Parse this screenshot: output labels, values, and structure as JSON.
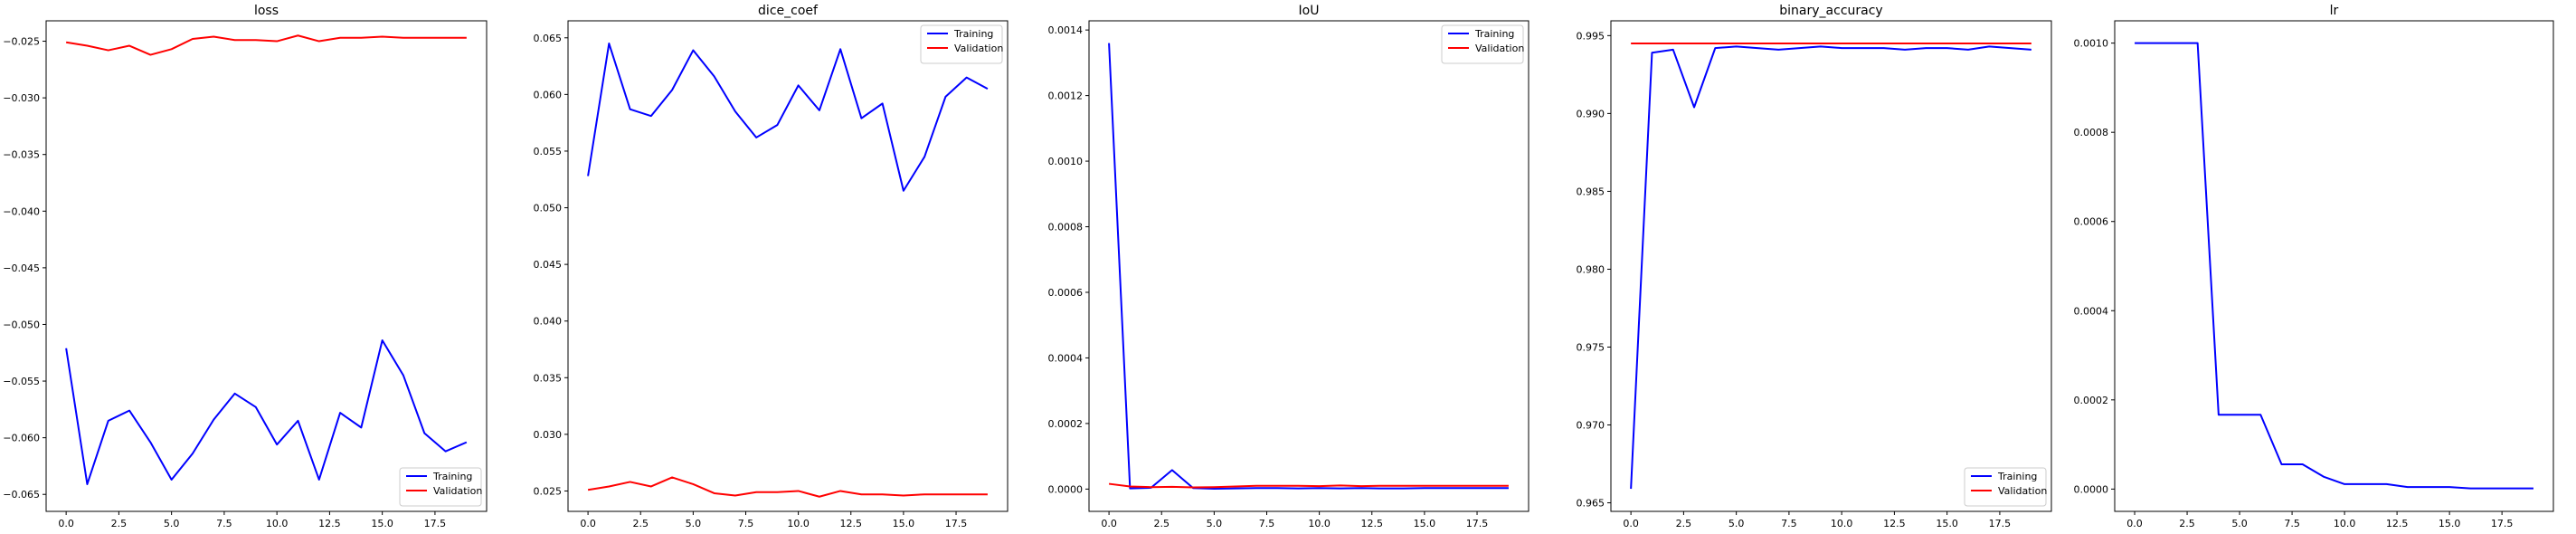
{
  "chart_data": [
    {
      "type": "line",
      "title": "loss",
      "xlabel": "",
      "ylabel": "",
      "xlim": [
        -0.95,
        19.95
      ],
      "ylim": [
        -0.0665,
        -0.0232
      ],
      "xticks": [
        0.0,
        2.5,
        5.0,
        7.5,
        10.0,
        12.5,
        15.0,
        17.5
      ],
      "xtick_labels": [
        "0.0",
        "2.5",
        "5.0",
        "7.5",
        "10.0",
        "12.5",
        "15.0",
        "17.5"
      ],
      "yticks": [
        -0.065,
        -0.06,
        -0.055,
        -0.05,
        -0.045,
        -0.04,
        -0.035,
        -0.03,
        -0.025
      ],
      "ytick_labels": [
        "−0.065",
        "−0.060",
        "−0.055",
        "−0.050",
        "−0.045",
        "−0.040",
        "−0.035",
        "−0.030",
        "−0.025"
      ],
      "legend": "lower-right",
      "x": [
        0,
        1,
        2,
        3,
        4,
        5,
        6,
        7,
        8,
        9,
        10,
        11,
        12,
        13,
        14,
        15,
        16,
        17,
        18,
        19
      ],
      "series": [
        {
          "name": "Training",
          "color": "#0000ff",
          "values": [
            -0.0521,
            -0.0641,
            -0.0585,
            -0.0576,
            -0.0604,
            -0.0637,
            -0.0614,
            -0.0584,
            -0.0561,
            -0.0573,
            -0.0606,
            -0.0585,
            -0.0637,
            -0.0578,
            -0.0591,
            -0.0514,
            -0.0545,
            -0.0596,
            -0.0612,
            -0.0604
          ]
        },
        {
          "name": "Validation",
          "color": "#ff0000",
          "values": [
            -0.0251,
            -0.0254,
            -0.0258,
            -0.0254,
            -0.0262,
            -0.0257,
            -0.0248,
            -0.0246,
            -0.0249,
            -0.0249,
            -0.025,
            -0.0245,
            -0.025,
            -0.0247,
            -0.0247,
            -0.0246,
            -0.0247,
            -0.0247,
            -0.0247,
            -0.0247
          ]
        }
      ]
    },
    {
      "type": "line",
      "title": "dice_coef",
      "xlabel": "",
      "ylabel": "",
      "xlim": [
        -0.95,
        19.95
      ],
      "ylim": [
        0.0232,
        0.0665
      ],
      "xticks": [
        0.0,
        2.5,
        5.0,
        7.5,
        10.0,
        12.5,
        15.0,
        17.5
      ],
      "xtick_labels": [
        "0.0",
        "2.5",
        "5.0",
        "7.5",
        "10.0",
        "12.5",
        "15.0",
        "17.5"
      ],
      "yticks": [
        0.025,
        0.03,
        0.035,
        0.04,
        0.045,
        0.05,
        0.055,
        0.06,
        0.065
      ],
      "ytick_labels": [
        "0.025",
        "0.030",
        "0.035",
        "0.040",
        "0.045",
        "0.050",
        "0.055",
        "0.060",
        "0.065"
      ],
      "legend": "upper-right",
      "x": [
        0,
        1,
        2,
        3,
        4,
        5,
        6,
        7,
        8,
        9,
        10,
        11,
        12,
        13,
        14,
        15,
        16,
        17,
        18,
        19
      ],
      "series": [
        {
          "name": "Training",
          "color": "#0000ff",
          "values": [
            0.0528,
            0.0645,
            0.0587,
            0.0581,
            0.0604,
            0.0639,
            0.0616,
            0.0585,
            0.0562,
            0.0573,
            0.0608,
            0.0586,
            0.064,
            0.0579,
            0.0592,
            0.0515,
            0.0545,
            0.0598,
            0.0615,
            0.0605
          ]
        },
        {
          "name": "Validation",
          "color": "#ff0000",
          "values": [
            0.0251,
            0.0254,
            0.0258,
            0.0254,
            0.0262,
            0.0256,
            0.0248,
            0.0246,
            0.0249,
            0.0249,
            0.025,
            0.0245,
            0.025,
            0.0247,
            0.0247,
            0.0246,
            0.0247,
            0.0247,
            0.0247,
            0.0247
          ]
        }
      ]
    },
    {
      "type": "line",
      "title": "IoU",
      "xlabel": "",
      "ylabel": "",
      "xlim": [
        -0.95,
        19.95
      ],
      "ylim": [
        -6.8e-05,
        0.001428
      ],
      "xticks": [
        0.0,
        2.5,
        5.0,
        7.5,
        10.0,
        12.5,
        15.0,
        17.5
      ],
      "xtick_labels": [
        "0.0",
        "2.5",
        "5.0",
        "7.5",
        "10.0",
        "12.5",
        "15.0",
        "17.5"
      ],
      "yticks": [
        0.0,
        0.0002,
        0.0004,
        0.0006,
        0.0008,
        0.001,
        0.0012,
        0.0014
      ],
      "ytick_labels": [
        "0.0000",
        "0.0002",
        "0.0004",
        "0.0006",
        "0.0008",
        "0.0010",
        "0.0012",
        "0.0014"
      ],
      "legend": "upper-right",
      "x": [
        0,
        1,
        2,
        3,
        4,
        5,
        6,
        7,
        8,
        9,
        10,
        11,
        12,
        13,
        14,
        15,
        16,
        17,
        18,
        19
      ],
      "series": [
        {
          "name": "Training",
          "color": "#0000ff",
          "values": [
            0.00136,
            2e-06,
            4e-06,
            5.8e-05,
            3e-06,
            1e-06,
            2e-06,
            3e-06,
            3e-06,
            2e-06,
            3e-06,
            2e-06,
            3e-06,
            2e-06,
            2e-06,
            3e-06,
            3e-06,
            3e-06,
            3e-06,
            3e-06
          ]
        },
        {
          "name": "Validation",
          "color": "#ff0000",
          "values": [
            1.6e-05,
            8e-06,
            6e-06,
            7e-06,
            5e-06,
            6e-06,
            8e-06,
            1e-05,
            1e-05,
            1e-05,
            9e-06,
            1.1e-05,
            9e-06,
            1e-05,
            1e-05,
            1e-05,
            1e-05,
            1e-05,
            1e-05,
            1e-05
          ]
        }
      ]
    },
    {
      "type": "line",
      "title": "binary_accuracy",
      "xlabel": "",
      "ylabel": "",
      "xlim": [
        -0.95,
        19.95
      ],
      "ylim": [
        0.96445,
        0.99595
      ],
      "xticks": [
        0.0,
        2.5,
        5.0,
        7.5,
        10.0,
        12.5,
        15.0,
        17.5
      ],
      "xtick_labels": [
        "0.0",
        "2.5",
        "5.0",
        "7.5",
        "10.0",
        "12.5",
        "15.0",
        "17.5"
      ],
      "yticks": [
        0.965,
        0.97,
        0.975,
        0.98,
        0.985,
        0.99,
        0.995
      ],
      "ytick_labels": [
        "0.965",
        "0.970",
        "0.975",
        "0.980",
        "0.985",
        "0.990",
        "0.995"
      ],
      "legend": "lower-right",
      "x": [
        0,
        1,
        2,
        3,
        4,
        5,
        6,
        7,
        8,
        9,
        10,
        11,
        12,
        13,
        14,
        15,
        16,
        17,
        18,
        19
      ],
      "series": [
        {
          "name": "Training",
          "color": "#0000ff",
          "values": [
            0.9659,
            0.9939,
            0.9941,
            0.9904,
            0.9942,
            0.9943,
            0.9942,
            0.9941,
            0.9942,
            0.9943,
            0.9942,
            0.9942,
            0.9942,
            0.9941,
            0.9942,
            0.9942,
            0.9941,
            0.9943,
            0.9942,
            0.9941
          ]
        },
        {
          "name": "Validation",
          "color": "#ff0000",
          "values": [
            0.9945,
            0.9945,
            0.9945,
            0.9945,
            0.9945,
            0.9945,
            0.9945,
            0.9945,
            0.9945,
            0.9945,
            0.9945,
            0.9945,
            0.9945,
            0.9945,
            0.9945,
            0.9945,
            0.9945,
            0.9945,
            0.9945,
            0.9945
          ]
        }
      ]
    },
    {
      "type": "line",
      "title": "lr",
      "xlabel": "",
      "ylabel": "",
      "xlim": [
        -0.95,
        19.95
      ],
      "ylim": [
        -5e-05,
        0.00105
      ],
      "xticks": [
        0.0,
        2.5,
        5.0,
        7.5,
        10.0,
        12.5,
        15.0,
        17.5
      ],
      "xtick_labels": [
        "0.0",
        "2.5",
        "5.0",
        "7.5",
        "10.0",
        "12.5",
        "15.0",
        "17.5"
      ],
      "yticks": [
        0.0,
        0.0002,
        0.0004,
        0.0006,
        0.0008,
        0.001
      ],
      "ytick_labels": [
        "0.0000",
        "0.0002",
        "0.0004",
        "0.0006",
        "0.0008",
        "0.0010"
      ],
      "legend": "",
      "x": [
        0,
        1,
        2,
        3,
        4,
        5,
        6,
        7,
        8,
        9,
        10,
        11,
        12,
        13,
        14,
        15,
        16,
        17,
        18,
        19
      ],
      "series": [
        {
          "name": "",
          "color": "#0000ff",
          "values": [
            0.001,
            0.001,
            0.001,
            0.001,
            0.0001667,
            0.0001667,
            0.0001667,
            5.56e-05,
            5.56e-05,
            2.78e-05,
            1.11e-05,
            1.11e-05,
            1.11e-05,
            4.6e-06,
            4.6e-06,
            4.6e-06,
            1.5e-06,
            1.5e-06,
            1.5e-06,
            1.5e-06
          ]
        }
      ]
    }
  ]
}
